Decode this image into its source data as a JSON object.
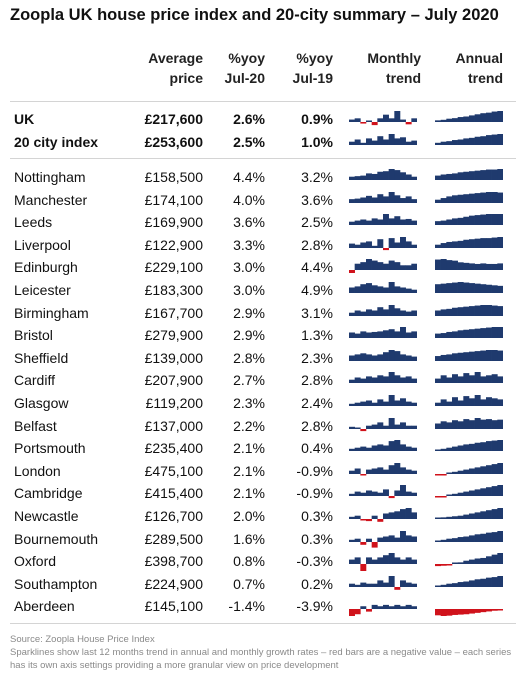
{
  "title": "Zoopla UK house price index and 20-city summary – July 2020",
  "headers": {
    "price": [
      "Average",
      "price"
    ],
    "yoy20": [
      "%yoy",
      "Jul-20"
    ],
    "yoy19": [
      "%yoy",
      "Jul-19"
    ],
    "monthly": [
      "Monthly",
      "trend"
    ],
    "annual": [
      "Annual",
      "trend"
    ]
  },
  "colors": {
    "positive": "#1f3a6e",
    "negative": "#d0121b"
  },
  "rows": [
    {
      "name": "UK",
      "price": "£217,600",
      "yoy20": "2.6%",
      "yoy19": "0.9%",
      "bold": true,
      "monthly": [
        0.2,
        0.3,
        -0.2,
        0.1,
        -0.4,
        0.3,
        0.6,
        0.3,
        0.9,
        0.2,
        -0.3,
        0.3
      ],
      "annual": [
        0.15,
        0.2,
        0.3,
        0.35,
        0.45,
        0.5,
        0.6,
        0.7,
        0.8,
        0.85,
        0.95,
        1.0
      ]
    },
    {
      "name": "20 city index",
      "price": "£253,600",
      "yoy20": "2.5%",
      "yoy19": "1.0%",
      "bold": true,
      "monthly": [
        0.3,
        0.5,
        0.2,
        0.6,
        0.4,
        0.8,
        0.5,
        1.0,
        0.6,
        0.7,
        0.3,
        0.4
      ],
      "annual": [
        0.2,
        0.3,
        0.35,
        0.45,
        0.5,
        0.6,
        0.65,
        0.75,
        0.8,
        0.9,
        0.95,
        1.0
      ]
    },
    {
      "name": "Nottingham",
      "price": "£158,500",
      "yoy20": "4.4%",
      "yoy19": "3.2%",
      "monthly": [
        0.3,
        0.35,
        0.4,
        0.6,
        0.55,
        0.75,
        0.8,
        1.0,
        0.9,
        0.7,
        0.5,
        0.3
      ],
      "annual": [
        0.4,
        0.5,
        0.55,
        0.6,
        0.7,
        0.75,
        0.8,
        0.85,
        0.9,
        0.95,
        0.95,
        1.0
      ]
    },
    {
      "name": "Manchester",
      "price": "£174,100",
      "yoy20": "4.0%",
      "yoy19": "3.6%",
      "monthly": [
        0.35,
        0.4,
        0.5,
        0.65,
        0.5,
        0.8,
        0.6,
        1.0,
        0.7,
        0.45,
        0.6,
        0.35
      ],
      "annual": [
        0.3,
        0.45,
        0.6,
        0.7,
        0.75,
        0.8,
        0.85,
        0.9,
        0.95,
        1.0,
        1.0,
        0.95
      ]
    },
    {
      "name": "Leeds",
      "price": "£169,900",
      "yoy20": "3.6%",
      "yoy19": "2.5%",
      "monthly": [
        0.3,
        0.4,
        0.5,
        0.4,
        0.6,
        0.5,
        1.0,
        0.6,
        0.8,
        0.5,
        0.55,
        0.4
      ],
      "annual": [
        0.35,
        0.4,
        0.5,
        0.6,
        0.65,
        0.75,
        0.85,
        0.9,
        0.95,
        1.0,
        1.0,
        1.0
      ]
    },
    {
      "name": "Liverpool",
      "price": "£122,900",
      "yoy20": "3.3%",
      "yoy19": "2.8%",
      "monthly": [
        0.4,
        0.3,
        0.5,
        0.6,
        0.2,
        0.8,
        -0.3,
        0.9,
        0.5,
        1.0,
        0.6,
        0.3
      ],
      "annual": [
        0.3,
        0.45,
        0.55,
        0.6,
        0.65,
        0.75,
        0.8,
        0.85,
        0.9,
        0.9,
        0.95,
        1.0
      ]
    },
    {
      "name": "Edinburgh",
      "price": "£229,100",
      "yoy20": "3.0%",
      "yoy19": "4.4%",
      "monthly": [
        -0.3,
        0.4,
        0.5,
        0.7,
        0.6,
        0.5,
        0.4,
        0.6,
        0.5,
        0.3,
        0.3,
        0.4
      ],
      "annual": [
        0.95,
        1.0,
        0.9,
        0.85,
        0.7,
        0.65,
        0.6,
        0.55,
        0.6,
        0.55,
        0.55,
        0.6
      ]
    },
    {
      "name": "Leicester",
      "price": "£183,300",
      "yoy20": "3.0%",
      "yoy19": "4.9%",
      "monthly": [
        0.5,
        0.6,
        0.8,
        0.9,
        0.7,
        0.6,
        0.5,
        1.0,
        0.6,
        0.5,
        0.4,
        0.3
      ],
      "annual": [
        0.8,
        0.85,
        0.9,
        0.95,
        1.0,
        0.95,
        0.9,
        0.85,
        0.8,
        0.75,
        0.7,
        0.65
      ]
    },
    {
      "name": "Birmingham",
      "price": "£167,700",
      "yoy20": "2.9%",
      "yoy19": "3.1%",
      "monthly": [
        0.3,
        0.5,
        0.4,
        0.6,
        0.5,
        0.8,
        0.6,
        1.0,
        0.7,
        0.5,
        0.4,
        0.5
      ],
      "annual": [
        0.5,
        0.6,
        0.65,
        0.75,
        0.8,
        0.85,
        0.9,
        0.95,
        1.0,
        1.0,
        0.95,
        0.9
      ]
    },
    {
      "name": "Bristol",
      "price": "£279,900",
      "yoy20": "2.9%",
      "yoy19": "1.3%",
      "monthly": [
        0.5,
        0.4,
        0.6,
        0.5,
        0.55,
        0.6,
        0.7,
        0.8,
        0.6,
        1.0,
        0.5,
        0.6
      ],
      "annual": [
        0.4,
        0.45,
        0.55,
        0.6,
        0.7,
        0.75,
        0.8,
        0.85,
        0.9,
        0.95,
        1.0,
        1.0
      ]
    },
    {
      "name": "Sheffield",
      "price": "£139,000",
      "yoy20": "2.8%",
      "yoy19": "2.3%",
      "monthly": [
        0.5,
        0.6,
        0.7,
        0.6,
        0.5,
        0.6,
        0.8,
        1.0,
        0.9,
        0.6,
        0.5,
        0.4
      ],
      "annual": [
        0.45,
        0.55,
        0.6,
        0.7,
        0.75,
        0.8,
        0.85,
        0.9,
        0.95,
        1.0,
        1.0,
        0.95
      ]
    },
    {
      "name": "Cardiff",
      "price": "£207,900",
      "yoy20": "2.7%",
      "yoy19": "2.8%",
      "monthly": [
        0.3,
        0.5,
        0.4,
        0.6,
        0.5,
        0.7,
        0.6,
        1.0,
        0.7,
        0.5,
        0.6,
        0.4
      ],
      "annual": [
        0.4,
        0.7,
        0.5,
        0.8,
        0.6,
        0.9,
        0.7,
        1.0,
        0.6,
        0.7,
        0.8,
        0.6
      ]
    },
    {
      "name": "Glasgow",
      "price": "£119,200",
      "yoy20": "2.3%",
      "yoy19": "2.4%",
      "monthly": [
        0.2,
        0.3,
        0.4,
        0.5,
        0.3,
        0.6,
        0.4,
        1.0,
        0.5,
        0.7,
        0.4,
        0.3
      ],
      "annual": [
        0.3,
        0.6,
        0.4,
        0.8,
        0.5,
        0.9,
        0.7,
        1.0,
        0.6,
        0.8,
        0.7,
        0.6
      ]
    },
    {
      "name": "Belfast",
      "price": "£137,000",
      "yoy20": "2.2%",
      "yoy19": "2.8%",
      "monthly": [
        0.2,
        0.1,
        -0.3,
        0.3,
        0.4,
        0.6,
        0.3,
        1.0,
        0.4,
        0.6,
        0.3,
        0.3
      ],
      "annual": [
        0.5,
        0.7,
        0.6,
        0.8,
        0.7,
        0.9,
        0.8,
        1.0,
        0.85,
        0.9,
        0.8,
        0.85
      ]
    },
    {
      "name": "Portsmouth",
      "price": "£235,400",
      "yoy20": "2.1%",
      "yoy19": "0.4%",
      "monthly": [
        0.2,
        0.3,
        0.4,
        0.3,
        0.5,
        0.6,
        0.5,
        0.9,
        1.0,
        0.6,
        0.4,
        0.3
      ],
      "annual": [
        0.1,
        0.2,
        0.3,
        0.4,
        0.5,
        0.6,
        0.65,
        0.75,
        0.8,
        0.9,
        0.95,
        1.0
      ]
    },
    {
      "name": "London",
      "price": "£475,100",
      "yoy20": "2.1%",
      "yoy19": "-0.9%",
      "monthly": [
        0.3,
        0.5,
        -0.2,
        0.4,
        0.5,
        0.6,
        0.4,
        0.8,
        1.0,
        0.6,
        0.4,
        0.3
      ],
      "annual": [
        -0.2,
        -0.1,
        0.1,
        0.2,
        0.3,
        0.4,
        0.5,
        0.6,
        0.7,
        0.8,
        0.9,
        1.0
      ]
    },
    {
      "name": "Cambridge",
      "price": "£415,400",
      "yoy20": "2.1%",
      "yoy19": "-0.9%",
      "monthly": [
        0.2,
        0.4,
        0.3,
        0.5,
        0.4,
        0.3,
        0.6,
        -0.3,
        0.5,
        1.0,
        0.4,
        0.3
      ],
      "annual": [
        -0.15,
        -0.1,
        0.1,
        0.2,
        0.3,
        0.4,
        0.5,
        0.6,
        0.7,
        0.8,
        0.9,
        1.0
      ]
    },
    {
      "name": "Newcastle",
      "price": "£126,700",
      "yoy20": "2.0%",
      "yoy19": "0.3%",
      "monthly": [
        0.2,
        0.3,
        -0.2,
        -0.3,
        0.3,
        -0.4,
        0.5,
        0.6,
        0.7,
        0.9,
        1.0,
        0.6
      ],
      "annual": [
        0.1,
        0.15,
        0.2,
        0.25,
        0.3,
        0.4,
        0.5,
        0.6,
        0.7,
        0.8,
        0.9,
        1.0
      ]
    },
    {
      "name": "Bournemouth",
      "price": "£289,500",
      "yoy20": "1.6%",
      "yoy19": "0.3%",
      "monthly": [
        0.2,
        0.3,
        -0.4,
        0.3,
        -0.8,
        0.4,
        0.5,
        0.6,
        0.4,
        1.0,
        0.6,
        0.5
      ],
      "annual": [
        0.1,
        0.2,
        0.3,
        0.35,
        0.45,
        0.5,
        0.6,
        0.7,
        0.75,
        0.85,
        0.9,
        1.0
      ]
    },
    {
      "name": "Oxford",
      "price": "£398,700",
      "yoy20": "0.8%",
      "yoy19": "-0.3%",
      "monthly": [
        0.2,
        0.3,
        -0.5,
        0.3,
        0.2,
        0.3,
        0.4,
        0.5,
        0.3,
        0.2,
        0.3,
        0.2
      ],
      "annual": [
        -0.3,
        -0.25,
        -0.1,
        0.1,
        0.15,
        0.3,
        0.4,
        0.5,
        0.55,
        0.7,
        0.85,
        1.0
      ]
    },
    {
      "name": "Southampton",
      "price": "£224,900",
      "yoy20": "0.7%",
      "yoy19": "0.2%",
      "monthly": [
        0.3,
        0.2,
        0.4,
        0.3,
        0.3,
        0.6,
        0.4,
        1.0,
        -0.4,
        0.6,
        0.4,
        0.3
      ],
      "annual": [
        0.1,
        0.2,
        0.3,
        0.35,
        0.45,
        0.5,
        0.6,
        0.7,
        0.75,
        0.85,
        0.9,
        1.0
      ]
    },
    {
      "name": "Aberdeen",
      "price": "£145,100",
      "yoy20": "-1.4%",
      "yoy19": "-3.9%",
      "monthly": [
        -0.8,
        -0.6,
        0.2,
        -0.3,
        0.3,
        0.2,
        0.3,
        0.2,
        0.3,
        0.2,
        0.3,
        0.2
      ],
      "annual": [
        -0.9,
        -1.0,
        -0.95,
        -0.85,
        -0.8,
        -0.75,
        -0.65,
        -0.55,
        -0.45,
        -0.35,
        -0.25,
        -0.15
      ]
    }
  ],
  "footer": {
    "source": "Source: Zoopla House Price Index",
    "note": "Sparklines show last 12 months trend in annual and monthly growth rates – red bars are a negative value – each series has its own axis settings providing a more granular view on price development"
  }
}
